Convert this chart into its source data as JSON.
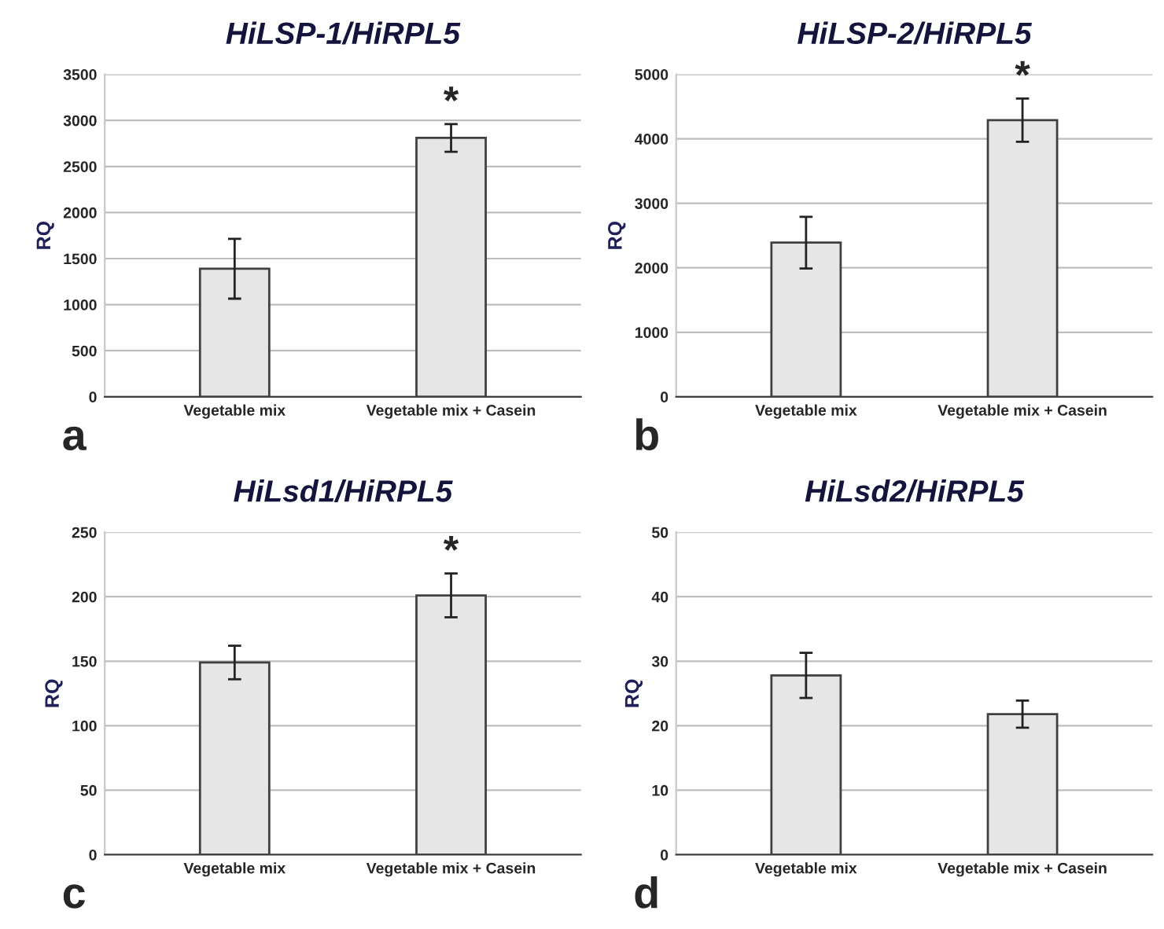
{
  "chart_data": [
    {
      "type": "bar",
      "title": "HiLSP-1/HiRPL5",
      "ylabel": "RQ",
      "categories": [
        "Vegetable mix",
        "Vegetable mix + Casein"
      ],
      "values": [
        1390,
        2810
      ],
      "errors": [
        325,
        150
      ],
      "color": "#e6e6e6",
      "ylim": [
        0,
        3500
      ],
      "yticks": [
        0,
        500,
        1000,
        1500,
        2000,
        2500,
        3000,
        3500
      ],
      "grid": "y",
      "annotations": [
        "a",
        {
          "text": "*",
          "x": "Vegetable mix + Casein",
          "y": 2960
        }
      ]
    },
    {
      "type": "bar",
      "title": "HiLSP-2/HiRPL5",
      "ylabel": "RQ",
      "categories": [
        "Vegetable mix",
        "Vegetable mix + Casein"
      ],
      "values": [
        2390,
        4290
      ],
      "errors": [
        400,
        335
      ],
      "color": "#e6e6e6",
      "ylim": [
        0,
        5000
      ],
      "yticks": [
        0,
        1000,
        2000,
        3000,
        4000,
        5000
      ],
      "grid": "y",
      "annotations": [
        "b",
        {
          "text": "*",
          "x": "Vegetable mix + Casein",
          "y": 4625
        }
      ]
    },
    {
      "type": "bar",
      "title": "HiLsd1/HiRPL5",
      "ylabel": "RQ",
      "categories": [
        "Vegetable mix",
        "Vegetable mix + Casein"
      ],
      "values": [
        149,
        201
      ],
      "errors": [
        13,
        17
      ],
      "color": "#e6e6e6",
      "ylim": [
        0,
        250
      ],
      "yticks": [
        0,
        50,
        100,
        150,
        200,
        250
      ],
      "grid": "y",
      "annotations": [
        "c",
        {
          "text": "*",
          "x": "Vegetable mix + Casein",
          "y": 218
        }
      ]
    },
    {
      "type": "bar",
      "title": "HiLsd2/HiRPL5",
      "ylabel": "RQ",
      "categories": [
        "Vegetable mix",
        "Vegetable mix + Casein"
      ],
      "values": [
        27.8,
        21.8
      ],
      "errors": [
        3.5,
        2.1
      ],
      "color": "#e6e6e6",
      "ylim": [
        0,
        50
      ],
      "yticks": [
        0,
        10,
        20,
        30,
        40,
        50
      ],
      "grid": "y",
      "annotations": [
        "d"
      ]
    }
  ]
}
